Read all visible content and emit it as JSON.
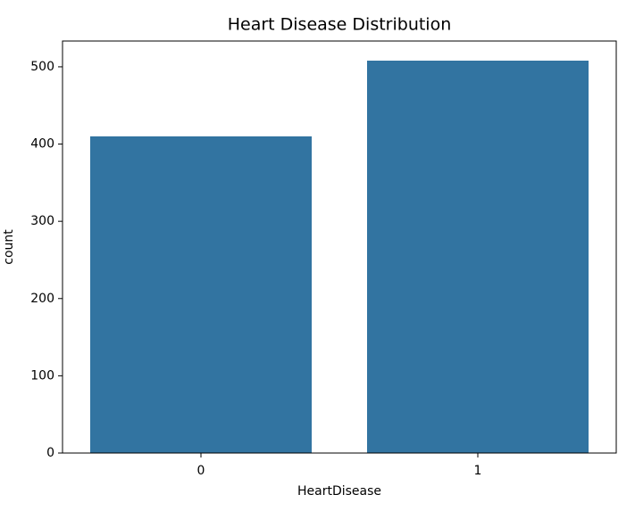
{
  "chart_data": {
    "type": "bar",
    "title": "Heart Disease Distribution",
    "x_label": "HeartDisease",
    "y_label": "count",
    "categories": [
      "0",
      "1"
    ],
    "values": [
      410,
      508
    ],
    "color": "#3274a1",
    "ylim": [
      0,
      533.4
    ],
    "yticks": [
      0,
      100,
      200,
      300,
      400,
      500
    ],
    "grid": false
  }
}
